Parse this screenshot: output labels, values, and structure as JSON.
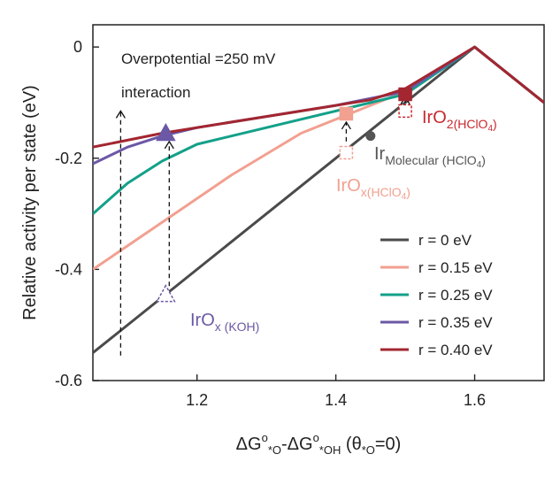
{
  "chart_data": {
    "type": "line",
    "xlim": [
      1.05,
      1.7
    ],
    "ylim": [
      -0.6,
      0.04
    ],
    "xticks": [
      {
        "value": 1.2,
        "label": "1.2"
      },
      {
        "value": 1.4,
        "label": "1.4"
      },
      {
        "value": 1.6,
        "label": "1.6"
      }
    ],
    "yticks": [
      {
        "value": 0,
        "label": "0"
      },
      {
        "value": -0.2,
        "label": "-0.2"
      },
      {
        "value": -0.4,
        "label": "-0.4"
      },
      {
        "value": -0.6,
        "label": "-0.6"
      }
    ],
    "ylabel": "Relative activity per state (eV)",
    "xlabel": {
      "p1": "ΔG",
      "s1": "o",
      "b1": "*O",
      "p2": "-ΔG",
      "s2": "o",
      "b2": "*OH",
      "p3": " (θ",
      "b3": "*O",
      "p4": "=0)"
    },
    "series": [
      {
        "name": "r = 0 eV",
        "color": "#4a4a4a",
        "x": [
          1.05,
          1.6,
          1.7
        ],
        "y": [
          -0.55,
          0.0,
          -0.1
        ]
      },
      {
        "name": "r = 0.15 eV",
        "color": "#f2a090",
        "x": [
          1.05,
          1.15,
          1.25,
          1.35,
          1.42,
          1.5,
          1.6,
          1.7
        ],
        "y": [
          -0.4,
          -0.315,
          -0.23,
          -0.155,
          -0.12,
          -0.08,
          0.0,
          -0.1
        ]
      },
      {
        "name": "r = 0.25 eV",
        "color": "#13a089",
        "x": [
          1.05,
          1.1,
          1.15,
          1.2,
          1.3,
          1.4,
          1.5,
          1.6,
          1.7
        ],
        "y": [
          -0.3,
          -0.245,
          -0.205,
          -0.175,
          -0.145,
          -0.115,
          -0.085,
          0.0,
          -0.1
        ]
      },
      {
        "name": "r = 0.35 eV",
        "color": "#6b58a6",
        "x": [
          1.05,
          1.1,
          1.15,
          1.2,
          1.3,
          1.4,
          1.5,
          1.6,
          1.7
        ],
        "y": [
          -0.21,
          -0.18,
          -0.16,
          -0.145,
          -0.125,
          -0.105,
          -0.08,
          0.0,
          -0.1
        ]
      },
      {
        "name": "r = 0.40 eV",
        "color": "#a32630",
        "x": [
          1.05,
          1.15,
          1.25,
          1.35,
          1.45,
          1.5,
          1.6,
          1.7
        ],
        "y": [
          -0.18,
          -0.155,
          -0.135,
          -0.115,
          -0.095,
          -0.075,
          0.0,
          -0.1
        ]
      }
    ],
    "annotations": {
      "overpotential": "Overpotential =250 mV",
      "interaction": "interaction",
      "irox_koh": {
        "main": "IrO",
        "sub": "x (KOH)",
        "color": "#6b58a6"
      },
      "ir_molecular": {
        "main": "Ir",
        "sub": "Molecular (HClO",
        "tail": "4",
        ")": ")",
        "color": "#555555"
      },
      "irox_hclo4": {
        "main": "IrO",
        "sub": "x(HClO",
        "tail": "4",
        "close": ")",
        "color": "#f2a090"
      },
      "iro2_hclo4": {
        "main": "IrO",
        "sub": "2(HClO",
        "tail": "4",
        "close": ")",
        "color": "#c8282e"
      }
    },
    "points": [
      {
        "name": "irox-koh-hollow-triangle",
        "x": 1.155,
        "y": -0.445,
        "shape": "triangle",
        "filled": false,
        "color": "#6b58a6"
      },
      {
        "name": "irox-koh-filled-triangle",
        "x": 1.155,
        "y": -0.155,
        "shape": "triangle",
        "filled": true,
        "color": "#6b58a6"
      },
      {
        "name": "irox-hclo4-hollow-square",
        "x": 1.415,
        "y": -0.19,
        "shape": "square",
        "filled": false,
        "color": "#f2a090"
      },
      {
        "name": "irox-hclo4-filled-square",
        "x": 1.415,
        "y": -0.12,
        "shape": "square",
        "filled": true,
        "color": "#f2a090"
      },
      {
        "name": "iro2-hclo4-hollow-square",
        "x": 1.5,
        "y": -0.115,
        "shape": "square",
        "filled": false,
        "color": "#c8282e"
      },
      {
        "name": "iro2-hclo4-filled-square",
        "x": 1.5,
        "y": -0.085,
        "shape": "square",
        "filled": true,
        "color": "#a32630"
      },
      {
        "name": "ir-molecular-dot",
        "x": 1.45,
        "y": -0.16,
        "shape": "circle",
        "filled": true,
        "color": "#555555"
      }
    ],
    "arrows": [
      {
        "name": "arrow-overpotential",
        "x": 1.09,
        "y_from": -0.555,
        "y_to": -0.115
      },
      {
        "name": "arrow-irox-koh",
        "x": 1.16,
        "y_from": -0.43,
        "y_to": -0.17
      },
      {
        "name": "arrow-irox-hclo4",
        "x": 1.415,
        "y_from": -0.17,
        "y_to": -0.135
      },
      {
        "name": "arrow-iro2-hclo4",
        "x": 1.5,
        "y_from": -0.1,
        "y_to": -0.09
      }
    ]
  }
}
